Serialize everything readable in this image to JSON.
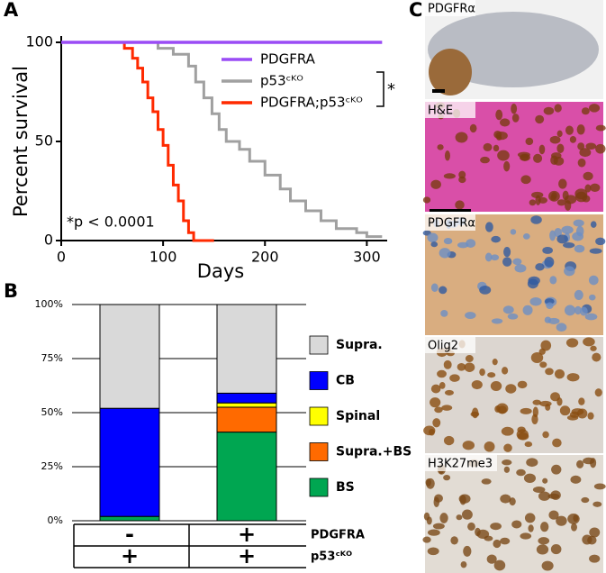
{
  "chart_data": [
    {
      "type": "line",
      "panel_label": "A",
      "x_label": "Days",
      "y_label": "Percent survival",
      "xlim": [
        0,
        320
      ],
      "ylim": [
        0,
        100
      ],
      "xticks": [
        0,
        100,
        200,
        300
      ],
      "yticks": [
        0,
        50,
        100
      ],
      "annotation": "*p < 0.0001",
      "significance": "*",
      "series": [
        {
          "name": "PDGFRA",
          "color": "#9a4cf5",
          "x": [
            0,
            315
          ],
          "values": [
            100,
            100
          ]
        },
        {
          "name": "p53ᶜᴷᴼ",
          "color": "#a0a0a0",
          "x": [
            95,
            95,
            110,
            110,
            125,
            125,
            132,
            132,
            140,
            140,
            148,
            148,
            155,
            155,
            162,
            162,
            175,
            175,
            185,
            185,
            200,
            200,
            215,
            215,
            225,
            225,
            240,
            240,
            255,
            255,
            270,
            270,
            290,
            290,
            300,
            300,
            315
          ],
          "values": [
            100,
            97,
            97,
            94,
            94,
            88,
            88,
            80,
            80,
            72,
            72,
            64,
            64,
            56,
            56,
            50,
            50,
            46,
            46,
            40,
            40,
            33,
            33,
            26,
            26,
            20,
            20,
            15,
            15,
            10,
            10,
            6,
            6,
            4,
            4,
            2,
            2
          ]
        },
        {
          "name": "PDGFRA;p53ᶜᴷᴼ",
          "color": "#ff2a00",
          "x": [
            62,
            62,
            70,
            70,
            75,
            75,
            80,
            80,
            85,
            85,
            90,
            90,
            95,
            95,
            100,
            100,
            105,
            105,
            110,
            110,
            115,
            115,
            120,
            120,
            125,
            125,
            130,
            130,
            150
          ],
          "values": [
            100,
            97,
            97,
            92,
            92,
            87,
            87,
            80,
            80,
            72,
            72,
            65,
            65,
            56,
            56,
            48,
            48,
            38,
            38,
            28,
            28,
            20,
            20,
            10,
            10,
            4,
            4,
            0,
            0
          ]
        }
      ]
    },
    {
      "type": "bar",
      "stacked": true,
      "panel_label": "B",
      "categories": [
        null,
        null
      ],
      "ylim": [
        0,
        100
      ],
      "yticks": [
        {
          "value": 0,
          "label": "0%"
        },
        {
          "value": 25,
          "label": "25%"
        },
        {
          "value": 50,
          "label": "50%"
        },
        {
          "value": 75,
          "label": "75%"
        },
        {
          "value": 100,
          "label": "100%"
        }
      ],
      "grid": true,
      "series": [
        {
          "name": "BS",
          "color": "#00a651",
          "values": [
            2,
            41
          ]
        },
        {
          "name": "Supra.+BS",
          "color": "#ff6a00",
          "values": [
            0,
            11.5
          ]
        },
        {
          "name": "Spinal",
          "color": "#ffff00",
          "values": [
            0,
            2
          ]
        },
        {
          "name": "CB",
          "color": "#0000ff",
          "values": [
            50,
            4.5
          ]
        },
        {
          "name": "Supra.",
          "color": "#d9d9d9",
          "values": [
            48,
            41
          ]
        }
      ]
    }
  ],
  "genotype_table": {
    "rows": [
      {
        "label": "PDGFRA",
        "cells": [
          "-",
          "+"
        ]
      },
      {
        "label": "p53ᶜᴷᴼ",
        "cells": [
          "+",
          "+"
        ]
      }
    ]
  },
  "histology": {
    "panel_label": "C",
    "images": [
      "PDGFRα",
      "H&E",
      "PDGFRα",
      "Olig2",
      "H3K27me3"
    ]
  }
}
